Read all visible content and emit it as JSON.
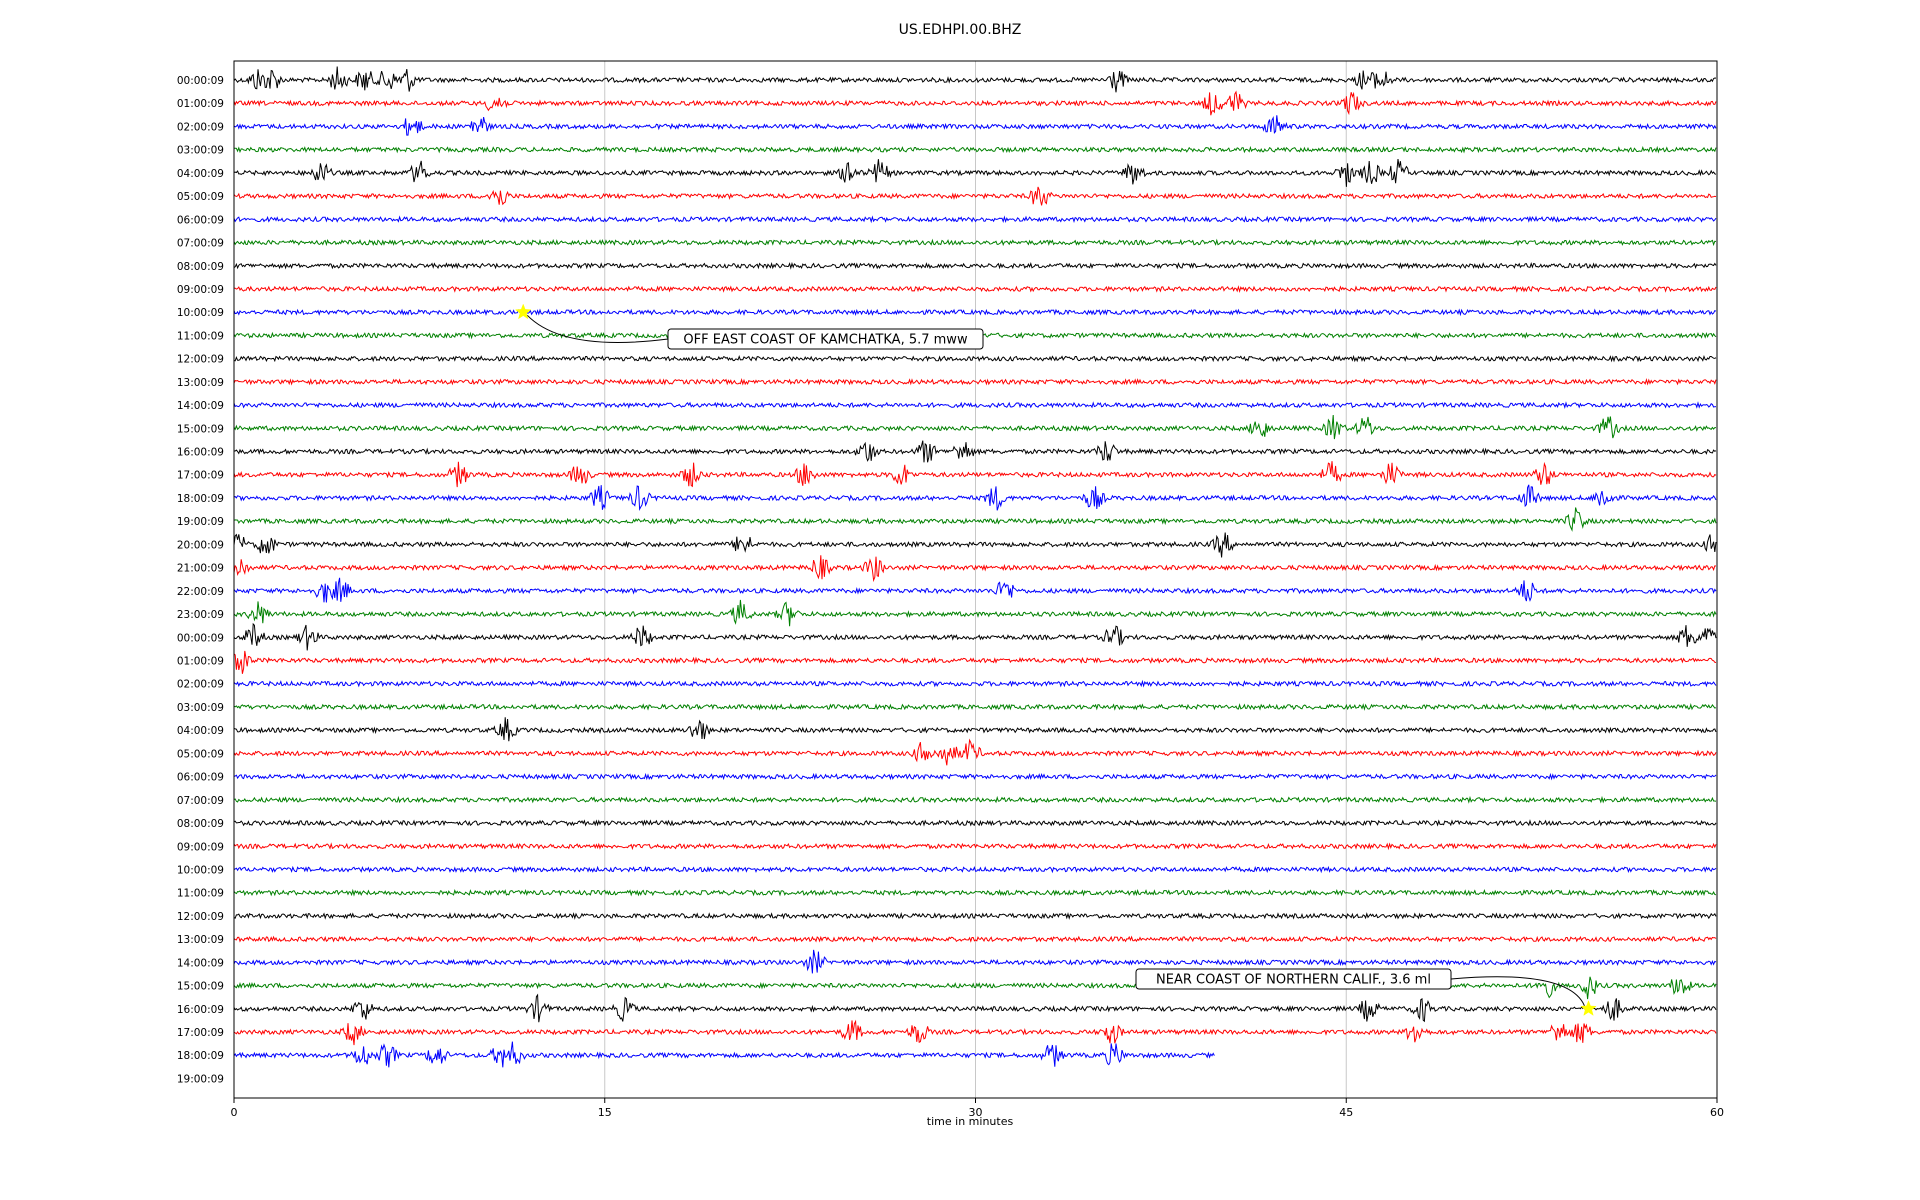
{
  "chart_data": {
    "type": "line",
    "title": "US.EDHPI.00.BHZ",
    "xlabel": "time in minutes",
    "xlim": [
      0,
      60
    ],
    "xticks": [
      "0",
      "15",
      "30",
      "45",
      "60"
    ],
    "grid": "vertical lines at 15, 30, 45",
    "row_labels": [
      "00:00:09",
      "01:00:09",
      "02:00:09",
      "03:00:09",
      "04:00:09",
      "05:00:09",
      "06:00:09",
      "07:00:09",
      "08:00:09",
      "09:00:09",
      "10:00:09",
      "11:00:09",
      "12:00:09",
      "13:00:09",
      "14:00:09",
      "15:00:09",
      "16:00:09",
      "17:00:09",
      "18:00:09",
      "19:00:09",
      "20:00:09",
      "21:00:09",
      "22:00:09",
      "23:00:09",
      "00:00:09",
      "01:00:09",
      "02:00:09",
      "03:00:09",
      "04:00:09",
      "05:00:09",
      "06:00:09",
      "07:00:09",
      "08:00:09",
      "09:00:09",
      "10:00:09",
      "11:00:09",
      "12:00:09",
      "13:00:09",
      "14:00:09",
      "15:00:09",
      "16:00:09",
      "17:00:09",
      "18:00:09",
      "19:00:09"
    ],
    "trace_colors": [
      "#000000",
      "#ff0000",
      "#0000ff",
      "#008000"
    ],
    "last_trace_end_minute": 39.7,
    "events": [
      {
        "label": "OFF EAST COAST OF KAMCHATKA, 5.7 mww",
        "row": 10,
        "minute": 11.7
      },
      {
        "label": "NEAR COAST OF NORTHERN CALIF., 3.6 ml",
        "row": 40,
        "minute": 54.8
      }
    ],
    "bursts": [
      {
        "row": 0,
        "minutes": [
          1.0,
          1.5,
          4.2,
          5.3,
          6.2,
          7.0,
          35.7,
          45.8,
          46.4
        ]
      },
      {
        "row": 1,
        "minutes": [
          10.6,
          39.6,
          40.5,
          45.2
        ]
      },
      {
        "row": 2,
        "minutes": [
          7.2,
          9.9,
          42.1
        ]
      },
      {
        "row": 4,
        "minutes": [
          3.5,
          7.5,
          24.9,
          26.1,
          36.4,
          45.0,
          46.0,
          47.1
        ]
      },
      {
        "row": 5,
        "minutes": [
          10.7,
          32.6
        ]
      },
      {
        "row": 15,
        "minutes": [
          41.5,
          44.5,
          45.8,
          55.6
        ]
      },
      {
        "row": 16,
        "minutes": [
          25.6,
          28.0,
          29.5,
          35.3
        ]
      },
      {
        "row": 17,
        "minutes": [
          9.1,
          14.0,
          18.5,
          23.1,
          27.0,
          44.4,
          46.8,
          53.0
        ]
      },
      {
        "row": 18,
        "minutes": [
          14.8,
          16.4,
          30.8,
          34.8,
          52.4,
          55.4
        ]
      },
      {
        "row": 19,
        "minutes": [
          54.3
        ]
      },
      {
        "row": 20,
        "minutes": [
          0.1,
          1.3,
          20.6,
          40.0,
          59.9
        ]
      },
      {
        "row": 21,
        "minutes": [
          0.2,
          23.7,
          25.9
        ]
      },
      {
        "row": 22,
        "minutes": [
          3.7,
          4.3,
          31.2,
          52.3
        ]
      },
      {
        "row": 23,
        "minutes": [
          1.0,
          20.5,
          22.4
        ]
      },
      {
        "row": 24,
        "minutes": [
          0.8,
          3.0,
          16.5,
          35.6,
          58.8,
          59.6
        ]
      },
      {
        "row": 25,
        "minutes": [
          0.3
        ]
      },
      {
        "row": 28,
        "minutes": [
          11.0,
          18.8
        ]
      },
      {
        "row": 29,
        "minutes": [
          27.9,
          28.9,
          29.8
        ]
      },
      {
        "row": 38,
        "minutes": [
          23.5
        ]
      },
      {
        "row": 39,
        "minutes": [
          53.1,
          54.8,
          58.5
        ]
      },
      {
        "row": 40,
        "minutes": [
          5.2,
          12.3,
          15.8,
          45.9,
          48.1,
          55.8
        ]
      },
      {
        "row": 41,
        "minutes": [
          4.8,
          25.0,
          27.7,
          35.5,
          47.8,
          53.6,
          54.5
        ]
      },
      {
        "row": 42,
        "minutes": [
          5.2,
          6.2,
          8.2,
          10.8,
          11.3,
          33.1,
          35.6
        ]
      }
    ]
  }
}
